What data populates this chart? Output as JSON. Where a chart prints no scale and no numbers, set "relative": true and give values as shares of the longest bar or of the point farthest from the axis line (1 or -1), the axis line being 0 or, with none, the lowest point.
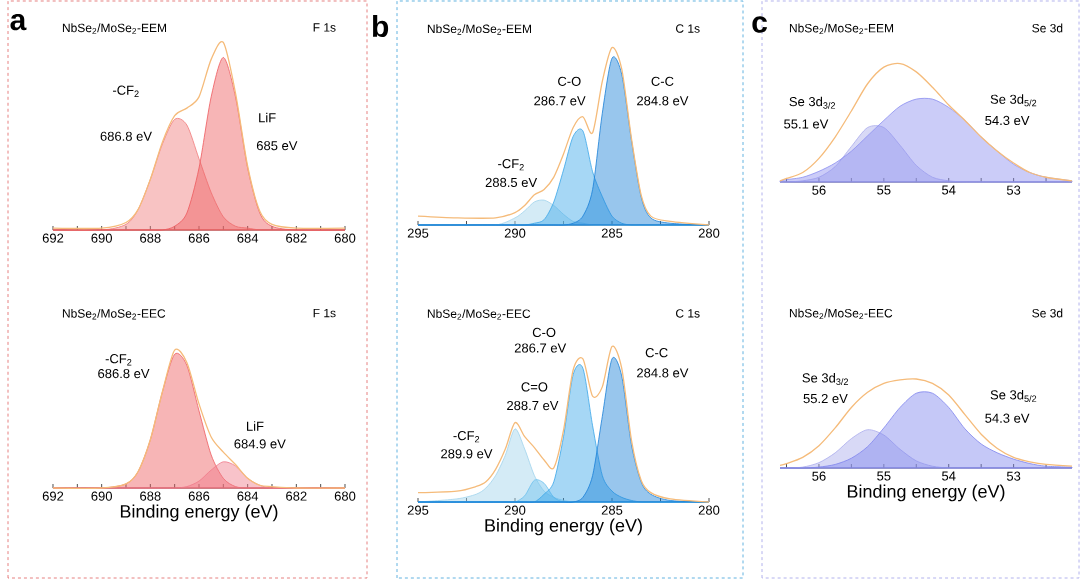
{
  "chart_data": [
    {
      "type": "area",
      "relative": true,
      "title": "NbSe$_{2}$/MoSe$_{2}$-EEM",
      "subtitle": "F 1s",
      "xlim": [
        692,
        680
      ],
      "xticks": [
        692,
        {
          "value": 691,
          "label": null
        },
        690,
        {
          "value": 689,
          "label": null
        },
        688,
        {
          "value": 687,
          "label": null
        },
        686,
        {
          "value": 685,
          "label": null
        },
        684,
        {
          "value": 683,
          "label": null
        },
        682,
        {
          "value": 681,
          "label": null
        },
        680
      ],
      "x": [
        692,
        690,
        689,
        688.5,
        688,
        687.5,
        687,
        686.5,
        686,
        685.5,
        685,
        684.5,
        684,
        683.5,
        683,
        682,
        680
      ],
      "series": [
        {
          "color": "#f07a7a",
          "values": [
            0,
            0,
            0.03,
            0.11,
            0.27,
            0.46,
            0.59,
            0.56,
            0.38,
            0.2,
            0.07,
            0.02,
            0.01,
            0,
            0,
            0,
            0
          ]
        },
        {
          "color": "#ee5a5e",
          "values": [
            0,
            0,
            0,
            0,
            0,
            0,
            0.02,
            0.09,
            0.33,
            0.71,
            0.92,
            0.71,
            0.33,
            0.09,
            0.02,
            0,
            0
          ]
        },
        {
          "type": "line",
          "color": "#f5bb7a",
          "values": [
            0.01,
            0.01,
            0.04,
            0.11,
            0.27,
            0.47,
            0.61,
            0.65,
            0.71,
            0.91,
            1.0,
            0.73,
            0.34,
            0.1,
            0.03,
            0.01,
            0.01
          ]
        }
      ],
      "annotations": [
        "a",
        "-CF$_{2}$",
        "686.8 eV",
        "LiF",
        "685 eV"
      ]
    },
    {
      "type": "area",
      "relative": true,
      "title": "NbSe$_{2}$/MoSe$_{2}$-EEM",
      "subtitle": "C 1s",
      "xlim": [
        295,
        280
      ],
      "xticks": [
        295,
        {
          "value": 292.5,
          "label": null
        },
        290,
        {
          "value": 287.5,
          "label": null
        },
        285,
        {
          "value": 282.5,
          "label": null
        },
        280
      ],
      "x": [
        295,
        293,
        291,
        290,
        289.5,
        289,
        288.5,
        288,
        287.5,
        287,
        286.5,
        286,
        285.5,
        285,
        284.5,
        284,
        283.5,
        283,
        282,
        280
      ],
      "series": [
        {
          "color": "#9fd3ec",
          "values": [
            0,
            0,
            0,
            0.04,
            0.08,
            0.13,
            0.14,
            0.11,
            0.06,
            0.02,
            0.01,
            0,
            0,
            0,
            0,
            0,
            0,
            0,
            0,
            0
          ]
        },
        {
          "color": "#3aa6e8",
          "values": [
            0,
            0,
            0,
            0,
            0,
            0.01,
            0.03,
            0.13,
            0.31,
            0.5,
            0.53,
            0.3,
            0.16,
            0.05,
            0.01,
            0,
            0,
            0,
            0,
            0
          ]
        },
        {
          "color": "#1a80d8",
          "values": [
            0,
            0,
            0,
            0,
            0,
            0,
            0,
            0,
            0,
            0.01,
            0.05,
            0.2,
            0.63,
            0.94,
            0.85,
            0.48,
            0.16,
            0.04,
            0.01,
            0
          ]
        },
        {
          "type": "line",
          "color": "#f5bb7a",
          "values": [
            0.05,
            0.04,
            0.04,
            0.07,
            0.11,
            0.17,
            0.2,
            0.27,
            0.4,
            0.55,
            0.61,
            0.52,
            0.81,
            1.0,
            0.88,
            0.49,
            0.17,
            0.05,
            0.02,
            0
          ]
        }
      ],
      "annotations": [
        "b",
        "-CF$_{2}$",
        "288.5 eV",
        "C-O",
        "286.7 eV",
        "C-C",
        "284.8 eV"
      ]
    },
    {
      "type": "area",
      "relative": true,
      "title": "NbSe$_{2}$/MoSe$_{2}$-EEM",
      "subtitle": "Se 3d",
      "xlim": [
        56.6,
        52.1
      ],
      "xticks": [
        {
          "value": 56.5,
          "label": null
        },
        56,
        {
          "value": 55.5,
          "label": null
        },
        55,
        {
          "value": 54.5,
          "label": null
        },
        54,
        {
          "value": 53.5,
          "label": null
        },
        53,
        {
          "value": 52.5,
          "label": null
        }
      ],
      "x": [
        56.6,
        56.5,
        56.25,
        56,
        55.75,
        55.5,
        55.25,
        55,
        54.75,
        54.5,
        54.25,
        54,
        53.75,
        53.5,
        53.25,
        53,
        52.75,
        52.5,
        52.1
      ],
      "series": [
        {
          "color": "#a9abec",
          "values": [
            0,
            0,
            0.01,
            0.04,
            0.13,
            0.3,
            0.46,
            0.46,
            0.31,
            0.14,
            0.04,
            0.01,
            0,
            0,
            0,
            0,
            0,
            0,
            0
          ]
        },
        {
          "color": "#8c8ff0",
          "values": [
            0.01,
            0.02,
            0.04,
            0.09,
            0.16,
            0.26,
            0.39,
            0.52,
            0.64,
            0.7,
            0.7,
            0.63,
            0.52,
            0.38,
            0.26,
            0.15,
            0.08,
            0.04,
            0.01
          ]
        },
        {
          "type": "line",
          "color": "#f5bb7a",
          "values": [
            0.01,
            0.03,
            0.08,
            0.2,
            0.38,
            0.6,
            0.83,
            0.97,
            1.0,
            0.93,
            0.8,
            0.65,
            0.52,
            0.38,
            0.26,
            0.16,
            0.08,
            0.04,
            0.01
          ]
        }
      ],
      "annotations": [
        "c",
        "Se 3d$_{3/2}$",
        "55.1 eV",
        "Se 3d$_{5/2}$",
        "54.3 eV"
      ]
    },
    {
      "type": "area",
      "relative": true,
      "title": "NbSe$_{2}$/MoSe$_{2}$-EEC",
      "subtitle": "F 1s",
      "xlabel": "Binding energy (eV)",
      "xlim": [
        692,
        680
      ],
      "xticks": [
        692,
        {
          "value": 691,
          "label": null
        },
        690,
        {
          "value": 689,
          "label": null
        },
        688,
        {
          "value": 687,
          "label": null
        },
        686,
        {
          "value": 685,
          "label": null
        },
        684,
        {
          "value": 683,
          "label": null
        },
        682,
        {
          "value": 681,
          "label": null
        },
        680
      ],
      "x": [
        692,
        690,
        689,
        688.5,
        688,
        687.5,
        687,
        686.5,
        686,
        685.5,
        685,
        684.5,
        684,
        683.5,
        683,
        682,
        680
      ],
      "series": [
        {
          "color": "#ee5a5e",
          "values": [
            0,
            0,
            0.03,
            0.12,
            0.35,
            0.7,
            0.97,
            0.89,
            0.56,
            0.24,
            0.07,
            0.01,
            0,
            0,
            0,
            0,
            0
          ]
        },
        {
          "color": "#f07a8a",
          "values": [
            0,
            0,
            0,
            0,
            0,
            0,
            0,
            0.01,
            0.05,
            0.13,
            0.19,
            0.16,
            0.07,
            0.02,
            0,
            0,
            0
          ]
        },
        {
          "type": "line",
          "color": "#f5bb7a",
          "values": [
            0,
            0,
            0.03,
            0.12,
            0.35,
            0.7,
            1.0,
            0.91,
            0.61,
            0.37,
            0.26,
            0.17,
            0.07,
            0.02,
            0.01,
            0,
            0
          ]
        }
      ],
      "annotations": [
        "-CF$_{2}$",
        "686.8 eV",
        "LiF",
        "684.9 eV"
      ]
    },
    {
      "type": "area",
      "relative": true,
      "title": "NbSe$_{2}$/MoSe$_{2}$-EEC",
      "subtitle": "C 1s",
      "xlabel": "Binding energy (eV)",
      "xlim": [
        295,
        280
      ],
      "xticks": [
        295,
        {
          "value": 292.5,
          "label": null
        },
        290,
        {
          "value": 287.5,
          "label": null
        },
        285,
        {
          "value": 282.5,
          "label": null
        },
        280
      ],
      "x": [
        295,
        293,
        292,
        291.5,
        291,
        290.5,
        290,
        289.5,
        289,
        288.5,
        288,
        287.5,
        287,
        286.5,
        286,
        285.5,
        285,
        284.5,
        284,
        283.5,
        283,
        282,
        280
      ],
      "series": [
        {
          "color": "#9fd3ec",
          "values": [
            0,
            0.02,
            0.05,
            0.09,
            0.17,
            0.3,
            0.47,
            0.34,
            0.17,
            0.07,
            0.03,
            0.01,
            0,
            0,
            0,
            0,
            0,
            0,
            0,
            0,
            0,
            0,
            0
          ]
        },
        {
          "color": "#6cc0ee",
          "values": [
            0,
            0,
            0,
            0,
            0,
            0,
            0,
            0.04,
            0.14,
            0.12,
            0.03,
            0,
            0,
            0,
            0,
            0,
            0,
            0,
            0,
            0,
            0,
            0,
            0
          ]
        },
        {
          "color": "#3aa6e8",
          "values": [
            0,
            0,
            0,
            0,
            0,
            0,
            0,
            0,
            0,
            0.05,
            0.13,
            0.42,
            0.82,
            0.86,
            0.49,
            0.17,
            0.07,
            0.03,
            0.01,
            0,
            0,
            0,
            0
          ]
        },
        {
          "color": "#1a80d8",
          "values": [
            0,
            0,
            0,
            0,
            0,
            0,
            0,
            0,
            0,
            0,
            0,
            0,
            0,
            0.03,
            0.17,
            0.55,
            0.92,
            0.81,
            0.37,
            0.13,
            0.05,
            0.01,
            0
          ]
        },
        {
          "type": "line",
          "color": "#f5bb7a",
          "values": [
            0.06,
            0.07,
            0.1,
            0.13,
            0.21,
            0.34,
            0.51,
            0.42,
            0.35,
            0.27,
            0.22,
            0.46,
            0.85,
            0.92,
            0.68,
            0.74,
            1.0,
            0.86,
            0.4,
            0.14,
            0.06,
            0.02,
            0
          ]
        }
      ],
      "annotations": [
        "C-O",
        "286.7 eV",
        "C=O",
        "288.7 eV",
        "-CF$_{2}$",
        "289.9 eV",
        "C-C",
        "284.8 eV"
      ]
    },
    {
      "type": "area",
      "relative": true,
      "title": "NbSe$_{2}$/MoSe$_{2}$-EEC",
      "subtitle": "Se 3d",
      "xlabel": "Binding energy (eV)",
      "xlim": [
        56.6,
        52.1
      ],
      "xticks": [
        {
          "value": 56.5,
          "label": null
        },
        56,
        {
          "value": 55.5,
          "label": null
        },
        55,
        {
          "value": 54.5,
          "label": null
        },
        54,
        {
          "value": 53.5,
          "label": null
        },
        53,
        {
          "value": 52.5,
          "label": null
        }
      ],
      "x": [
        56.6,
        56.5,
        56.25,
        56,
        55.75,
        55.5,
        55.25,
        55,
        54.75,
        54.5,
        54.25,
        54,
        53.75,
        53.5,
        53.25,
        53,
        52.75,
        52.5,
        52.1
      ],
      "series": [
        {
          "color": "#a9abec",
          "values": [
            0,
            0,
            0.01,
            0.06,
            0.17,
            0.33,
            0.43,
            0.37,
            0.21,
            0.08,
            0.02,
            0,
            0,
            0,
            0,
            0,
            0,
            0,
            0
          ]
        },
        {
          "color": "#7f84ee",
          "values": [
            0,
            0,
            0,
            0.01,
            0.04,
            0.11,
            0.24,
            0.45,
            0.68,
            0.84,
            0.84,
            0.68,
            0.44,
            0.27,
            0.17,
            0.1,
            0.05,
            0.02,
            0.01
          ]
        },
        {
          "type": "line",
          "color": "#f5bb7a",
          "values": [
            0.03,
            0.05,
            0.12,
            0.25,
            0.45,
            0.68,
            0.85,
            0.95,
            0.99,
            1.0,
            0.95,
            0.82,
            0.6,
            0.38,
            0.22,
            0.12,
            0.07,
            0.04,
            0.02
          ]
        }
      ],
      "annotations": [
        "Se 3d$_{3/2}$",
        "55.2 eV",
        "Se 3d$_{5/2}$",
        "54.3 eV"
      ]
    }
  ]
}
